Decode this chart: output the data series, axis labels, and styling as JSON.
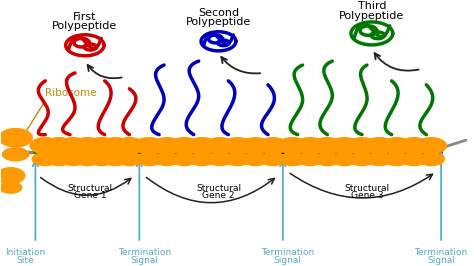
{
  "bg_color": "#ffffff",
  "mrna_color": "#888888",
  "gene1_color": "#008800",
  "gene2_color": "#cc0000",
  "gene3_color": "#000099",
  "ribosome_color": "#ff9900",
  "poly1_color": "#cc0000",
  "poly2_color": "#0000bb",
  "poly3_color": "#007700",
  "label_color": "#55aacc",
  "arrow_color": "#222222",
  "ribosome_label_color": "#cc8800",
  "labels": {
    "ribosome": "Ribosome",
    "first_poly": [
      "First",
      "Polypeptide"
    ],
    "second_poly": [
      "Second",
      "Polypeptide"
    ],
    "third_poly": [
      "Third",
      "Polypeptide"
    ],
    "initiation": [
      "Initiation",
      "Site"
    ],
    "struct_gene1": [
      "Structural",
      "Gene 1"
    ],
    "struct_gene2": [
      "Structural",
      "Gene 2"
    ],
    "struct_gene3": [
      "Structural",
      "Gene 3"
    ],
    "term1": [
      "Termination",
      "Signal"
    ],
    "term2": [
      "Termination",
      "Signal"
    ],
    "term3": [
      "Termination",
      "Signal"
    ]
  },
  "figsize": [
    4.74,
    2.66
  ],
  "dpi": 100
}
